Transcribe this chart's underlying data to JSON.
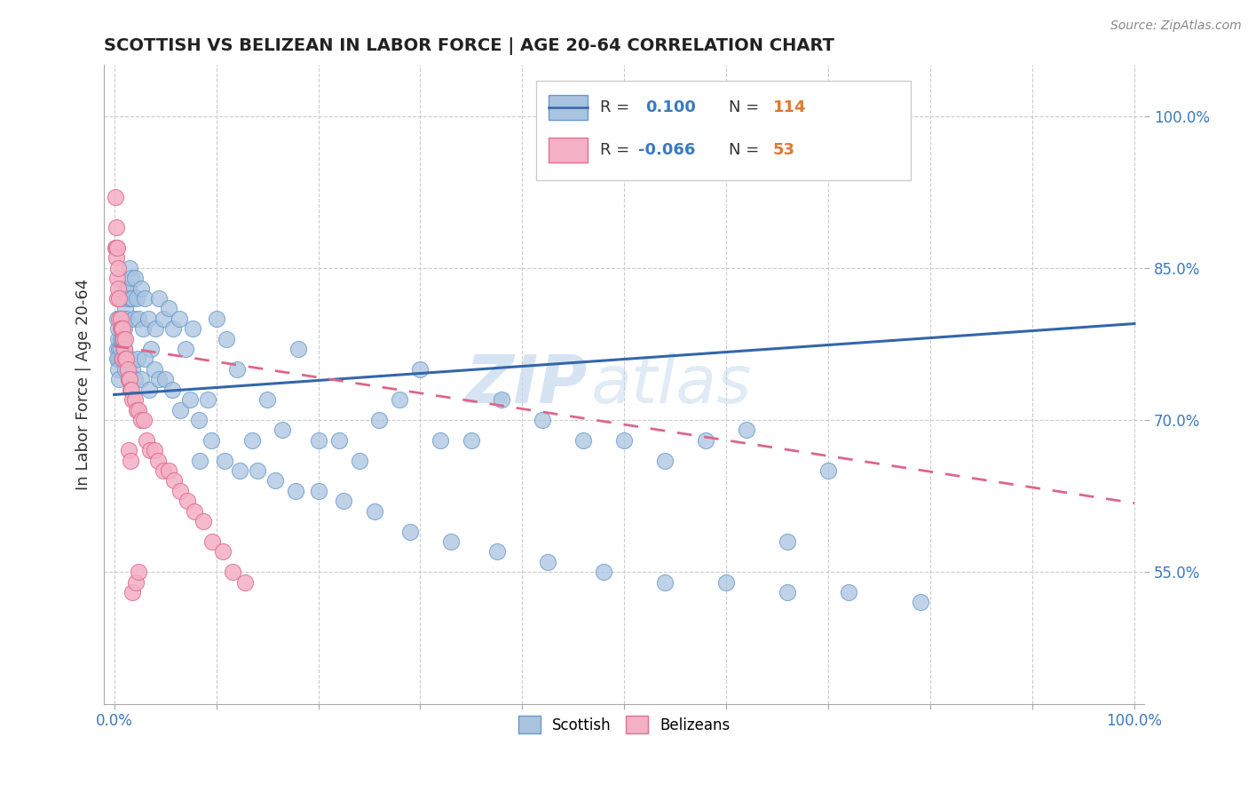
{
  "title": "SCOTTISH VS BELIZEAN IN LABOR FORCE | AGE 20-64 CORRELATION CHART",
  "source": "Source: ZipAtlas.com",
  "ylabel": "In Labor Force | Age 20-64",
  "xlim": [
    -0.01,
    1.01
  ],
  "ylim": [
    0.42,
    1.05
  ],
  "yticks": [
    0.55,
    0.7,
    0.85,
    1.0
  ],
  "ytick_labels": [
    "55.0%",
    "70.0%",
    "85.0%",
    "100.0%"
  ],
  "grid_color": "#cccccc",
  "background_color": "#ffffff",
  "watermark_zip": "ZIP",
  "watermark_atlas": "atlas",
  "scottish_color": "#aac4e0",
  "scottish_edge": "#6699cc",
  "belizean_color": "#f4b0c4",
  "belizean_edge": "#e07090",
  "line_scottish_color": "#3366aa",
  "line_belizean_color": "#dd6688",
  "scottish_line_start_y": 0.725,
  "scottish_line_end_y": 0.795,
  "belizean_line_start_y": 0.773,
  "belizean_line_end_y": 0.618,
  "scottish_x": [
    0.003,
    0.003,
    0.004,
    0.004,
    0.004,
    0.005,
    0.005,
    0.006,
    0.006,
    0.007,
    0.007,
    0.008,
    0.008,
    0.009,
    0.009,
    0.01,
    0.01,
    0.011,
    0.012,
    0.012,
    0.013,
    0.014,
    0.015,
    0.016,
    0.017,
    0.018,
    0.019,
    0.02,
    0.022,
    0.024,
    0.026,
    0.028,
    0.03,
    0.033,
    0.036,
    0.04,
    0.044,
    0.048,
    0.053,
    0.058,
    0.064,
    0.07,
    0.077,
    0.084,
    0.092,
    0.1,
    0.11,
    0.12,
    0.135,
    0.15,
    0.165,
    0.18,
    0.2,
    0.22,
    0.24,
    0.26,
    0.28,
    0.3,
    0.32,
    0.35,
    0.38,
    0.42,
    0.46,
    0.5,
    0.54,
    0.58,
    0.62,
    0.66,
    0.7,
    0.003,
    0.004,
    0.005,
    0.006,
    0.007,
    0.008,
    0.009,
    0.01,
    0.011,
    0.012,
    0.013,
    0.014,
    0.016,
    0.018,
    0.02,
    0.023,
    0.026,
    0.03,
    0.034,
    0.039,
    0.044,
    0.05,
    0.057,
    0.065,
    0.074,
    0.083,
    0.095,
    0.108,
    0.123,
    0.14,
    0.158,
    0.178,
    0.2,
    0.225,
    0.255,
    0.29,
    0.33,
    0.375,
    0.425,
    0.48,
    0.54,
    0.6,
    0.66,
    0.72,
    0.79
  ],
  "scottish_y": [
    0.77,
    0.8,
    0.78,
    0.76,
    0.79,
    0.77,
    0.76,
    0.8,
    0.78,
    0.82,
    0.8,
    0.83,
    0.78,
    0.8,
    0.77,
    0.82,
    0.79,
    0.81,
    0.83,
    0.8,
    0.82,
    0.83,
    0.85,
    0.82,
    0.84,
    0.82,
    0.8,
    0.84,
    0.82,
    0.8,
    0.83,
    0.79,
    0.82,
    0.8,
    0.77,
    0.79,
    0.82,
    0.8,
    0.81,
    0.79,
    0.8,
    0.77,
    0.79,
    0.66,
    0.72,
    0.8,
    0.78,
    0.75,
    0.68,
    0.72,
    0.69,
    0.77,
    0.68,
    0.68,
    0.66,
    0.7,
    0.72,
    0.75,
    0.68,
    0.68,
    0.72,
    0.7,
    0.68,
    0.68,
    0.66,
    0.68,
    0.69,
    0.58,
    0.65,
    0.76,
    0.75,
    0.74,
    0.77,
    0.76,
    0.78,
    0.76,
    0.77,
    0.75,
    0.76,
    0.75,
    0.74,
    0.76,
    0.75,
    0.74,
    0.76,
    0.74,
    0.76,
    0.73,
    0.75,
    0.74,
    0.74,
    0.73,
    0.71,
    0.72,
    0.7,
    0.68,
    0.66,
    0.65,
    0.65,
    0.64,
    0.63,
    0.63,
    0.62,
    0.61,
    0.59,
    0.58,
    0.57,
    0.56,
    0.55,
    0.54,
    0.54,
    0.53,
    0.53,
    0.52
  ],
  "belizean_x": [
    0.001,
    0.001,
    0.002,
    0.002,
    0.002,
    0.003,
    0.003,
    0.003,
    0.004,
    0.004,
    0.005,
    0.005,
    0.006,
    0.006,
    0.007,
    0.008,
    0.008,
    0.009,
    0.01,
    0.011,
    0.011,
    0.012,
    0.013,
    0.014,
    0.015,
    0.016,
    0.017,
    0.018,
    0.02,
    0.022,
    0.024,
    0.026,
    0.029,
    0.032,
    0.035,
    0.039,
    0.043,
    0.048,
    0.053,
    0.059,
    0.065,
    0.072,
    0.079,
    0.087,
    0.096,
    0.106,
    0.116,
    0.128,
    0.014,
    0.016,
    0.018,
    0.021,
    0.024
  ],
  "belizean_y": [
    0.87,
    0.92,
    0.87,
    0.89,
    0.86,
    0.84,
    0.87,
    0.82,
    0.83,
    0.85,
    0.8,
    0.82,
    0.8,
    0.79,
    0.79,
    0.79,
    0.76,
    0.78,
    0.77,
    0.78,
    0.76,
    0.76,
    0.75,
    0.74,
    0.74,
    0.73,
    0.73,
    0.72,
    0.72,
    0.71,
    0.71,
    0.7,
    0.7,
    0.68,
    0.67,
    0.67,
    0.66,
    0.65,
    0.65,
    0.64,
    0.63,
    0.62,
    0.61,
    0.6,
    0.58,
    0.57,
    0.55,
    0.54,
    0.67,
    0.66,
    0.53,
    0.54,
    0.55
  ]
}
